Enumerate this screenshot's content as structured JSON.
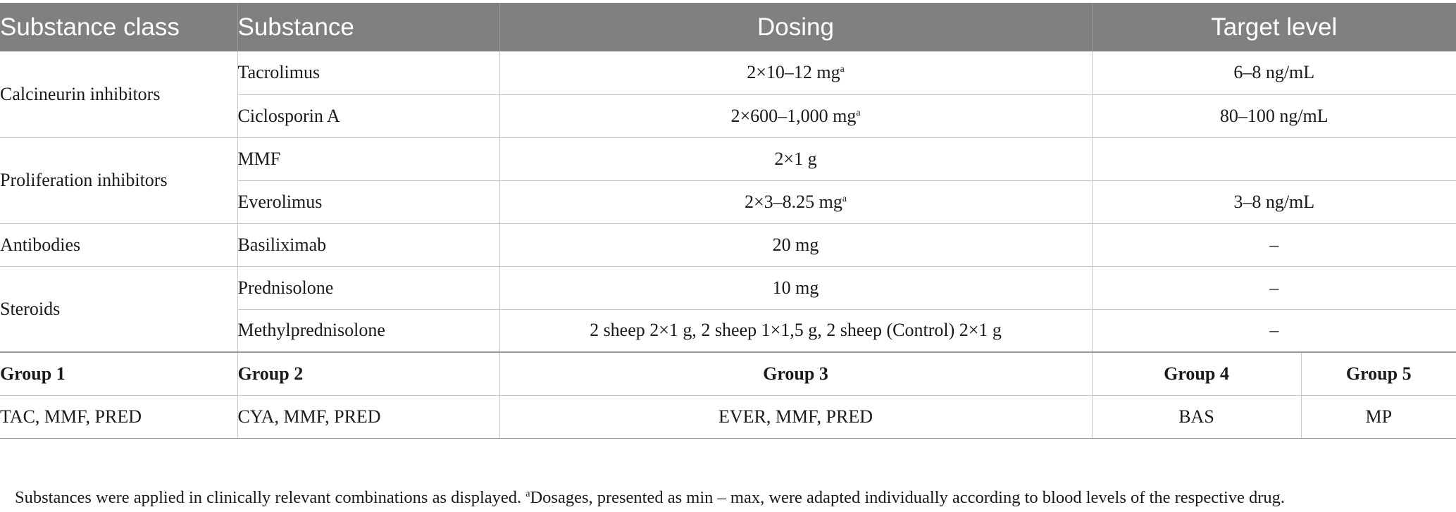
{
  "table": {
    "headers": {
      "substance_class": "Substance class",
      "substance": "Substance",
      "dosing": "Dosing",
      "target_level": "Target level"
    },
    "rows": [
      {
        "class": "Calcineurin inhibitors",
        "substance": "Tacrolimus",
        "dosing": "2×10–12 mg",
        "sup": "a",
        "target": "6–8 ng/mL"
      },
      {
        "class": "",
        "substance": "Ciclosporin A",
        "dosing": "2×600–1,000 mg",
        "sup": "a",
        "target": "80–100 ng/mL"
      },
      {
        "class": "Proliferation inhibitors",
        "substance": "MMF",
        "dosing": "2×1 g",
        "sup": "",
        "target": ""
      },
      {
        "class": "",
        "substance": "Everolimus",
        "dosing": "2×3–8.25 mg",
        "sup": "a",
        "target": "3–8 ng/mL"
      },
      {
        "class": "Antibodies",
        "substance": "Basiliximab",
        "dosing": "20 mg",
        "sup": "",
        "target": "–"
      },
      {
        "class": "Steroids",
        "substance": "Prednisolone",
        "dosing": "10 mg",
        "sup": "",
        "target": "–"
      },
      {
        "class": "",
        "substance": "Methylprednisolone",
        "dosing": "2 sheep 2×1 g, 2 sheep 1×1,5 g, 2 sheep (Control) 2×1 g",
        "sup": "",
        "target": "–"
      }
    ],
    "groups": {
      "labels": [
        "Group 1",
        "Group 2",
        "Group 3",
        "Group 4",
        "Group 5"
      ],
      "combinations": [
        "TAC, MMF, PRED",
        "CYA, MMF, PRED",
        "EVER, MMF, PRED",
        "BAS",
        "MP"
      ]
    }
  },
  "footnote": {
    "lead": "Substances were applied in clinically relevant combinations as displayed. ",
    "marker": "a",
    "text": "Dosages, presented as min – max, were adapted individually according to blood levels of the respective drug."
  }
}
